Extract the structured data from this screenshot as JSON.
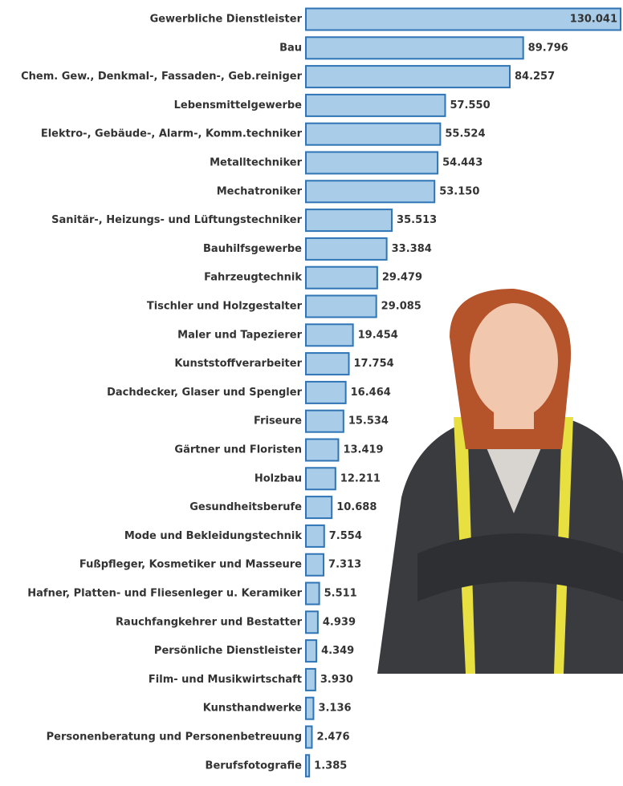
{
  "chart_data": {
    "type": "hbar",
    "categories": [
      "Gewerbliche Dienstleister",
      "Bau",
      "Chem. Gew., Denkmal-, Fassaden-, Geb.reiniger",
      "Lebensmittelgewerbe",
      "Elektro-, Gebäude-, Alarm-, Komm.techniker",
      "Metalltechniker",
      "Mechatroniker",
      "Sanitär-, Heizungs- und Lüftungstechniker",
      "Bauhilfsgewerbe",
      "Fahrzeugtechnik",
      "Tischler und Holzgestalter",
      "Maler und Tapezierer",
      "Kunststoffverarbeiter",
      "Dachdecker, Glaser und Spengler",
      "Friseure",
      "Gärtner und Floristen",
      "Holzbau",
      "Gesundheitsberufe",
      "Mode und Bekleidungstechnik",
      "Fußpfleger, Kosmetiker und Masseure",
      "Hafner, Platten- und Fliesenleger u. Keramiker",
      "Rauchfangkehrer und Bestatter",
      "Persönliche Dienstleister",
      "Film- und Musikwirtschaft",
      "Kunsthandwerke",
      "Personenberatung und Personenbetreuung",
      "Berufsfotografie"
    ],
    "values": [
      130041,
      89796,
      84257,
      57550,
      55524,
      54443,
      53150,
      35513,
      33384,
      29479,
      29085,
      19454,
      17754,
      16464,
      15534,
      13419,
      12211,
      10688,
      7554,
      7313,
      5511,
      4939,
      4349,
      3930,
      3136,
      2476,
      1385
    ],
    "value_labels": [
      "130.041",
      "89.796",
      "84.257",
      "57.550",
      "55.524",
      "54.443",
      "53.150",
      "35.513",
      "33.384",
      "29.479",
      "29.085",
      "19.454",
      "17.754",
      "16.464",
      "15.534",
      "13.419",
      "12.211",
      "10.688",
      "7.554",
      "7.313",
      "5.511",
      "4.939",
      "4.349",
      "3.930",
      "3.136",
      "2.476",
      "1.385"
    ],
    "color": "#a9cde8",
    "edge_color": "#2f74b5"
  }
}
